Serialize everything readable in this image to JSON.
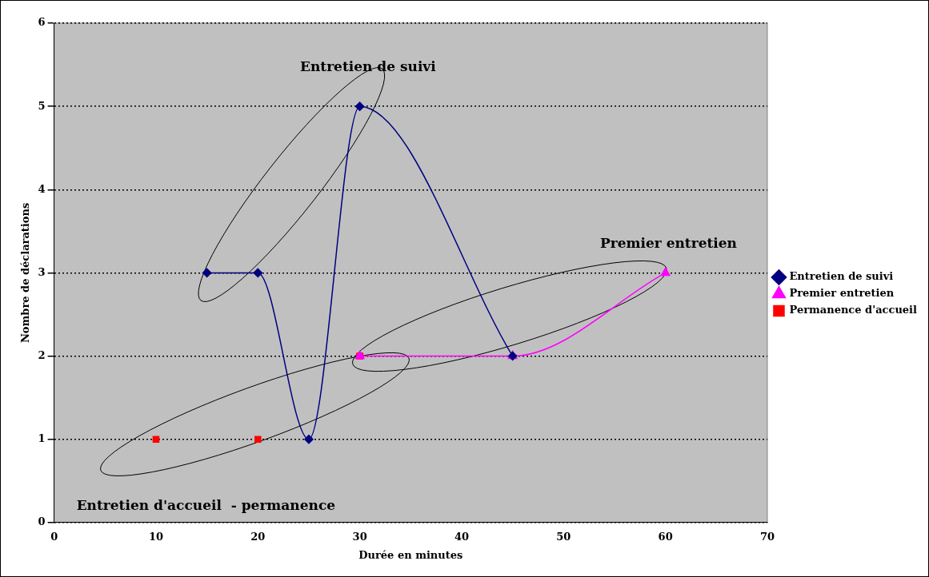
{
  "chart_data": {
    "type": "line",
    "xlabel": "Durée en minutes",
    "ylabel": "Nombre de déclarations",
    "xlim": [
      0,
      70
    ],
    "xticks": [
      0,
      10,
      20,
      30,
      40,
      50,
      60,
      70
    ],
    "ylim": [
      0,
      6
    ],
    "yticks": [
      0,
      1,
      2,
      3,
      4,
      5,
      6
    ],
    "grid": "y",
    "legend": "right",
    "series": [
      {
        "name": "Entretien de suivi",
        "color": "#000080",
        "marker": "diamond",
        "x": [
          15,
          20,
          25,
          30,
          45
        ],
        "values": [
          3,
          3,
          1,
          5,
          2
        ]
      },
      {
        "name": "Premier entretien",
        "color": "#ff00ff",
        "marker": "triangle",
        "x": [
          30,
          45,
          60
        ],
        "values": [
          2,
          2,
          3
        ]
      },
      {
        "name": "Permanence d'accueil",
        "color": "#ff0000",
        "marker": "square",
        "type": "scatter",
        "x": [
          10,
          20,
          30
        ],
        "values": [
          1,
          1,
          2
        ]
      }
    ],
    "annotations": [
      "Entretien de suivi",
      "Premier entretien",
      "Entretien d'accueil  - permanence"
    ]
  }
}
